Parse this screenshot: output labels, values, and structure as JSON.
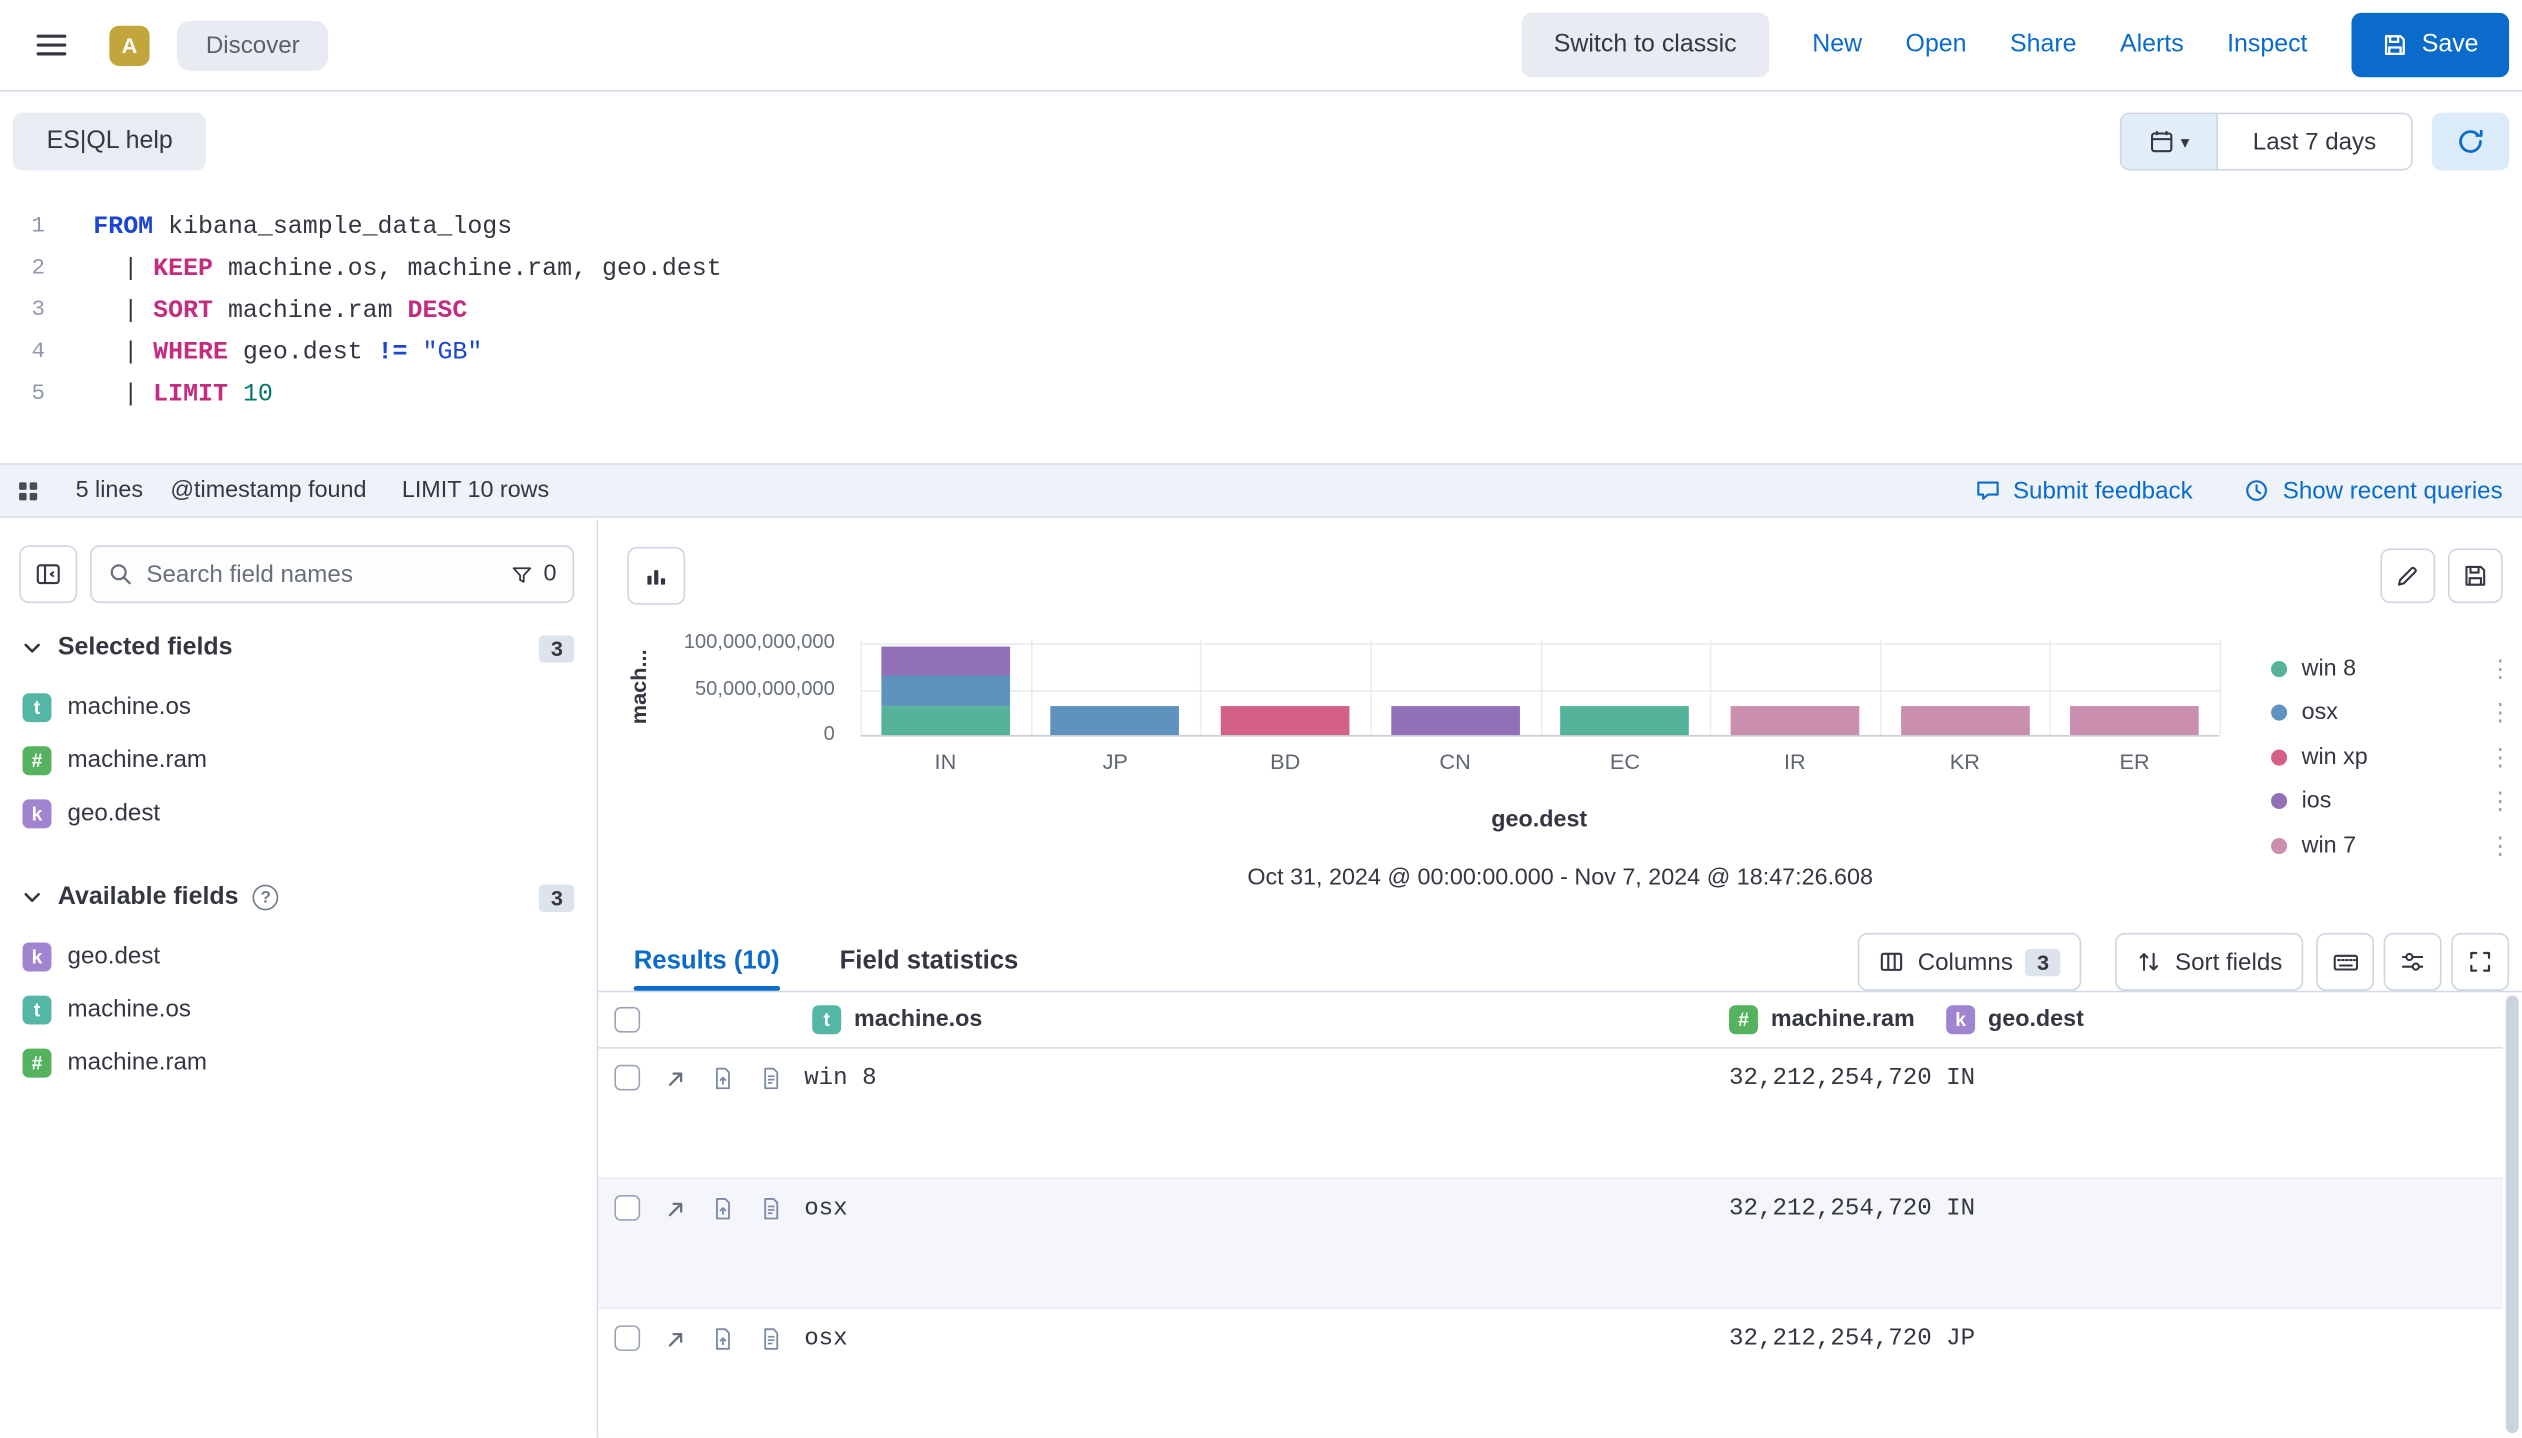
{
  "icons": {
    "chevron_down": "▾",
    "dots_vertical": "⋮",
    "question": "?"
  },
  "topbar": {
    "avatar_initial": "A",
    "breadcrumb": "Discover",
    "switch_to_classic": "Switch to classic",
    "nav_links": [
      "New",
      "Open",
      "Share",
      "Alerts",
      "Inspect"
    ],
    "save_label": "Save"
  },
  "query_bar": {
    "esql_help_label": "ES|QL help",
    "time_range_label": "Last 7 days"
  },
  "editor": {
    "lines": [
      {
        "number": "1",
        "segments": [
          {
            "cls": "kw",
            "text": "FROM"
          },
          {
            "cls": "plain",
            "text": " kibana_sample_data_logs"
          }
        ]
      },
      {
        "number": "2",
        "segments": [
          {
            "cls": "plain",
            "text": "  | "
          },
          {
            "cls": "cmd",
            "text": "KEEP"
          },
          {
            "cls": "plain",
            "text": " machine.os, machine.ram, geo.dest"
          }
        ]
      },
      {
        "number": "3",
        "segments": [
          {
            "cls": "plain",
            "text": "  | "
          },
          {
            "cls": "cmd",
            "text": "SORT"
          },
          {
            "cls": "plain",
            "text": " machine.ram "
          },
          {
            "cls": "cmd",
            "text": "DESC"
          }
        ]
      },
      {
        "number": "4",
        "segments": [
          {
            "cls": "plain",
            "text": "  | "
          },
          {
            "cls": "cmd",
            "text": "WHERE"
          },
          {
            "cls": "plain",
            "text": " geo.dest "
          },
          {
            "cls": "op",
            "text": "!="
          },
          {
            "cls": "plain",
            "text": " "
          },
          {
            "cls": "str",
            "text": "\"GB\""
          }
        ]
      },
      {
        "number": "5",
        "segments": [
          {
            "cls": "plain",
            "text": "  | "
          },
          {
            "cls": "cmd",
            "text": "LIMIT"
          },
          {
            "cls": "plain",
            "text": " "
          },
          {
            "cls": "num",
            "text": "10"
          }
        ]
      }
    ]
  },
  "editor_status": {
    "lines_info": "5 lines",
    "timestamp_info": "@timestamp found",
    "limit_info": "LIMIT 10 rows",
    "submit_feedback": "Submit feedback",
    "show_recent_queries": "Show recent queries"
  },
  "sidebar": {
    "search_placeholder": "Search field names",
    "filter_count": "0",
    "sections": {
      "selected": {
        "label": "Selected fields",
        "count": "3",
        "fields": [
          {
            "type": "t",
            "name": "machine.os"
          },
          {
            "type": "#",
            "name": "machine.ram"
          },
          {
            "type": "k",
            "name": "geo.dest"
          }
        ]
      },
      "available": {
        "label": "Available fields",
        "count": "3",
        "fields": [
          {
            "type": "k",
            "name": "geo.dest"
          },
          {
            "type": "t",
            "name": "machine.os"
          },
          {
            "type": "#",
            "name": "machine.ram"
          }
        ]
      }
    }
  },
  "chart_data": {
    "type": "bar",
    "stacked": true,
    "categories": [
      "IN",
      "JP",
      "BD",
      "CN",
      "EC",
      "IR",
      "KR",
      "ER"
    ],
    "series": [
      {
        "name": "win 8",
        "color": "#54B399",
        "values": [
          32212254720,
          0,
          0,
          0,
          32212254720,
          0,
          0,
          0
        ]
      },
      {
        "name": "osx",
        "color": "#6092C0",
        "values": [
          32212254720,
          32212254720,
          0,
          0,
          0,
          0,
          0,
          0
        ]
      },
      {
        "name": "win xp",
        "color": "#D36086",
        "values": [
          0,
          0,
          32212254720,
          0,
          0,
          0,
          0,
          0
        ]
      },
      {
        "name": "ios",
        "color": "#9170B8",
        "values": [
          32212254720,
          0,
          0,
          32212254720,
          0,
          0,
          0,
          0
        ]
      },
      {
        "name": "win 7",
        "color": "#CA8EAE",
        "values": [
          0,
          0,
          0,
          0,
          0,
          32212254720,
          32212254720,
          32212254720
        ]
      }
    ],
    "ylabel": "mach...",
    "xlabel": "geo.dest",
    "ylim": [
      0,
      100000000000
    ],
    "yticks": [
      {
        "value": 0,
        "label": "0"
      },
      {
        "value": 50000000000,
        "label": "50,000,000,000"
      },
      {
        "value": 100000000000,
        "label": "100,000,000,000"
      }
    ],
    "legend_position": "right",
    "caption": "Oct 31, 2024 @ 00:00:00.000 - Nov 7, 2024 @ 18:47:26.608"
  },
  "results": {
    "tabs": [
      {
        "label": "Results (10)",
        "active": true
      },
      {
        "label": "Field statistics",
        "active": false
      }
    ],
    "columns_button": "Columns",
    "columns_count": "3",
    "sort_button": "Sort fields",
    "table": {
      "columns": [
        {
          "type": "t",
          "name": "machine.os"
        },
        {
          "type": "#",
          "name": "machine.ram"
        },
        {
          "type": "k",
          "name": "geo.dest"
        }
      ],
      "rows": [
        {
          "machine_os": "win 8",
          "machine_ram": "32,212,254,720",
          "geo_dest": "IN"
        },
        {
          "machine_os": "osx",
          "machine_ram": "32,212,254,720",
          "geo_dest": "IN"
        },
        {
          "machine_os": "osx",
          "machine_ram": "32,212,254,720",
          "geo_dest": "JP"
        }
      ]
    }
  }
}
